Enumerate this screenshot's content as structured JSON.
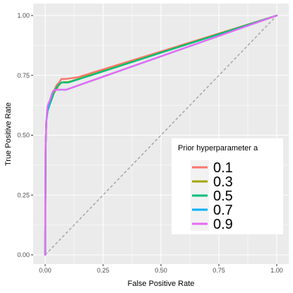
{
  "chart_data": {
    "type": "line",
    "title": "",
    "xlabel": "False Positive Rate",
    "ylabel": "True Positive Rate",
    "xlim": [
      0,
      1
    ],
    "ylim": [
      0,
      1
    ],
    "x_ticks": [
      "0.00",
      "0.25",
      "0.50",
      "0.75",
      "1.00"
    ],
    "y_ticks": [
      "0.00",
      "0.25",
      "0.50",
      "0.75",
      "1.00"
    ],
    "grid": true,
    "legend": {
      "title": "Prior hyperparameter a",
      "placement": "lower-right"
    },
    "reference_line": {
      "style": "dashed",
      "color": "#a6a6a6",
      "x": [
        0,
        1
      ],
      "y": [
        0,
        1
      ]
    },
    "series": [
      {
        "name": "0.1",
        "color": "#f8766d",
        "x": [
          0,
          0.002,
          0.005,
          0.01,
          0.015,
          0.02,
          0.025,
          0.03,
          0.04,
          0.05,
          0.06,
          0.07,
          0.08,
          0.09,
          0.14,
          1.0
        ],
        "y": [
          0,
          0.45,
          0.56,
          0.6,
          0.62,
          0.64,
          0.655,
          0.67,
          0.69,
          0.71,
          0.72,
          0.735,
          0.735,
          0.735,
          0.742,
          1.0
        ]
      },
      {
        "name": "0.3",
        "color": "#a3a500",
        "x": [
          0,
          0.002,
          0.005,
          0.01,
          0.015,
          0.02,
          0.025,
          0.03,
          0.04,
          0.05,
          0.06,
          0.07,
          0.08,
          0.1,
          1.0
        ],
        "y": [
          0,
          0.45,
          0.56,
          0.6,
          0.615,
          0.63,
          0.645,
          0.66,
          0.68,
          0.695,
          0.71,
          0.72,
          0.722,
          0.722,
          1.0
        ]
      },
      {
        "name": "0.5",
        "color": "#00bf7d",
        "x": [
          0,
          0.002,
          0.005,
          0.01,
          0.015,
          0.02,
          0.03,
          0.04,
          0.05,
          0.06,
          0.07,
          0.08,
          0.1,
          1.0
        ],
        "y": [
          0,
          0.45,
          0.56,
          0.6,
          0.615,
          0.63,
          0.655,
          0.685,
          0.7,
          0.712,
          0.72,
          0.72,
          0.72,
          1.0
        ]
      },
      {
        "name": "0.7",
        "color": "#00b0f6",
        "x": [
          0,
          0.002,
          0.005,
          0.01,
          0.015,
          0.02,
          0.025,
          0.03,
          0.035,
          0.04,
          0.05,
          0.06,
          0.07,
          0.08,
          0.09,
          1.0
        ],
        "y": [
          0,
          0.45,
          0.56,
          0.6,
          0.62,
          0.64,
          0.66,
          0.675,
          0.685,
          0.688,
          0.69,
          0.69,
          0.69,
          0.69,
          0.69,
          1.0
        ]
      },
      {
        "name": "0.9",
        "color": "#e76bf3",
        "x": [
          0,
          0.002,
          0.005,
          0.008,
          0.01,
          0.015,
          0.02,
          0.025,
          0.03,
          0.035,
          0.04,
          0.05,
          0.06,
          0.07,
          0.09,
          1.0
        ],
        "y": [
          0,
          0.45,
          0.56,
          0.6,
          0.62,
          0.635,
          0.645,
          0.66,
          0.675,
          0.685,
          0.688,
          0.69,
          0.69,
          0.69,
          0.69,
          1.0
        ]
      }
    ]
  }
}
